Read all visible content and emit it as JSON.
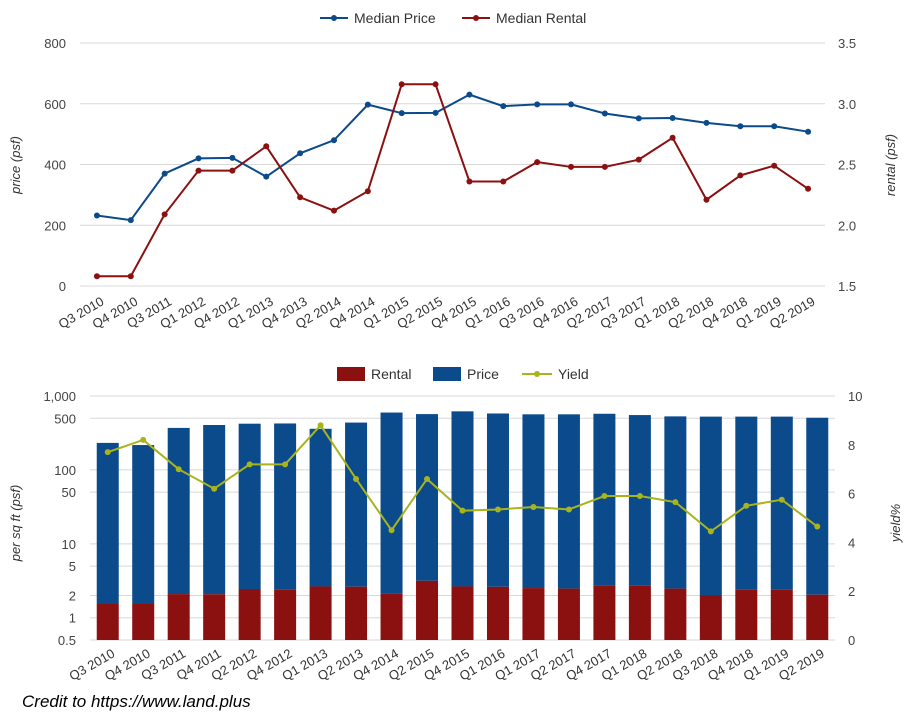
{
  "credit": "Credit to https://www.land.plus",
  "chart_data": [
    {
      "type": "line",
      "title": "",
      "xlabel": "",
      "ylabel": "price (psf)",
      "y2label": "rental (psf)",
      "categories": [
        "Q3 2010",
        "Q4 2010",
        "Q3 2011",
        "Q1 2012",
        "Q4 2012",
        "Q1 2013",
        "Q4 2013",
        "Q2 2014",
        "Q4 2014",
        "Q1 2015",
        "Q2 2015",
        "Q4 2015",
        "Q1 2016",
        "Q3 2016",
        "Q4 2016",
        "Q2 2017",
        "Q3 2017",
        "Q1 2018",
        "Q2 2018",
        "Q4 2018",
        "Q1 2019",
        "Q2 2019"
      ],
      "ylim": [
        0,
        800
      ],
      "y_ticks": [
        "0",
        "200",
        "400",
        "600",
        "800"
      ],
      "y2lim": [
        1.5,
        3.5
      ],
      "y2_ticks": [
        "1.5",
        "2.0",
        "2.5",
        "3.0",
        "3.5"
      ],
      "legend_position": "top-center",
      "grid": true,
      "series": [
        {
          "name": "Median Price",
          "axis": "left",
          "color": "#0b4a8b",
          "values": [
            232,
            217,
            370,
            420,
            422,
            360,
            437,
            480,
            597,
            569,
            570,
            630,
            592,
            598,
            598,
            568,
            552,
            553,
            537,
            526,
            526,
            508
          ]
        },
        {
          "name": "Median Rental",
          "axis": "right",
          "color": "#8b1010",
          "values": [
            1.58,
            1.58,
            2.09,
            2.45,
            2.45,
            2.65,
            2.23,
            2.12,
            2.28,
            3.16,
            3.16,
            2.36,
            2.36,
            2.52,
            2.48,
            2.48,
            2.54,
            2.72,
            2.21,
            2.41,
            2.49,
            2.3
          ]
        }
      ]
    },
    {
      "type": "bar",
      "title": "",
      "xlabel": "",
      "ylabel": "per sq ft (psf)",
      "y2label": "yield%",
      "scale": "log",
      "categories": [
        "Q3 2010",
        "Q4 2010",
        "Q3 2011",
        "Q4 2011",
        "Q2 2012",
        "Q4 2012",
        "Q1 2013",
        "Q2 2013",
        "Q4 2014",
        "Q2 2015",
        "Q4 2015",
        "Q1 2016",
        "Q1 2017",
        "Q2 2017",
        "Q4 2017",
        "Q1 2018",
        "Q2 2018",
        "Q3 2018",
        "Q4 2018",
        "Q1 2019",
        "Q2 2019"
      ],
      "ylim": [
        0.5,
        1000
      ],
      "y_ticks": [
        {
          "value": 0.5,
          "label": "0.5"
        },
        {
          "value": 1,
          "label": "1"
        },
        {
          "value": 2,
          "label": "2"
        },
        {
          "value": 5,
          "label": "5"
        },
        {
          "value": 10,
          "label": "10"
        },
        {
          "value": 50,
          "label": "50"
        },
        {
          "value": 100,
          "label": "100"
        },
        {
          "value": 500,
          "label": "500"
        },
        {
          "value": 1000,
          "label": "1,000"
        }
      ],
      "y2lim": [
        0,
        10
      ],
      "y2_ticks": [
        "0",
        "2",
        "4",
        "6",
        "8",
        "10"
      ],
      "legend_position": "top-center",
      "grid": true,
      "series": [
        {
          "name": "Rental",
          "color": "#8b1010",
          "values": [
            1.58,
            1.58,
            2.09,
            2.08,
            2.45,
            2.4,
            2.65,
            2.63,
            2.12,
            3.16,
            2.65,
            2.62,
            2.52,
            2.48,
            2.72,
            2.7,
            2.48,
            2.0,
            2.4,
            2.4,
            2.05
          ]
        },
        {
          "name": "Price",
          "color": "#0b4a8b",
          "values": [
            232,
            217,
            370,
            405,
            422,
            425,
            360,
            437,
            597,
            569,
            620,
            580,
            565,
            565,
            575,
            552,
            530,
            526,
            526,
            526,
            508
          ]
        },
        {
          "name": "Yield",
          "axis": "right",
          "color": "#a8b41e",
          "values": [
            7.7,
            8.2,
            7.0,
            6.2,
            7.2,
            7.2,
            8.8,
            6.6,
            4.5,
            6.6,
            5.3,
            5.35,
            5.45,
            5.35,
            5.9,
            5.9,
            5.65,
            4.45,
            5.5,
            5.75,
            4.65
          ]
        }
      ]
    }
  ]
}
